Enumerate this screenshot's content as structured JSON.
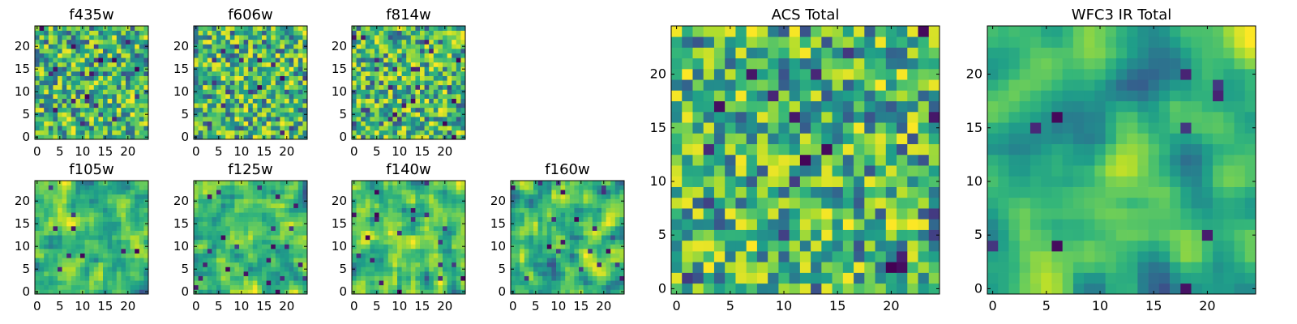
{
  "colormap": "viridis",
  "chart_data": [
    {
      "id": "f435w",
      "type": "heatmap",
      "title": "f435w",
      "grid_size": 25,
      "xlim": [
        -0.5,
        24.5
      ],
      "ylim": [
        -0.5,
        24.5
      ],
      "xticks": [
        0,
        5,
        10,
        15,
        20
      ],
      "yticks": [
        0,
        5,
        10,
        15,
        20
      ],
      "texture": "noise",
      "seed": 11
    },
    {
      "id": "f606w",
      "type": "heatmap",
      "title": "f606w",
      "grid_size": 25,
      "xlim": [
        -0.5,
        24.5
      ],
      "ylim": [
        -0.5,
        24.5
      ],
      "xticks": [
        0,
        5,
        10,
        15,
        20
      ],
      "yticks": [
        0,
        5,
        10,
        15,
        20
      ],
      "texture": "noise",
      "seed": 23
    },
    {
      "id": "f814w",
      "type": "heatmap",
      "title": "f814w",
      "grid_size": 25,
      "xlim": [
        -0.5,
        24.5
      ],
      "ylim": [
        -0.5,
        24.5
      ],
      "xticks": [
        0,
        5,
        10,
        15,
        20
      ],
      "yticks": [
        0,
        5,
        10,
        15,
        20
      ],
      "texture": "noise",
      "seed": 37
    },
    {
      "id": "f105w",
      "type": "heatmap",
      "title": "f105w",
      "grid_size": 25,
      "xlim": [
        -0.5,
        24.5
      ],
      "ylim": [
        -0.5,
        24.5
      ],
      "xticks": [
        0,
        5,
        10,
        15,
        20
      ],
      "yticks": [
        0,
        5,
        10,
        15,
        20
      ],
      "texture": "smooth",
      "seed": 41
    },
    {
      "id": "f125w",
      "type": "heatmap",
      "title": "f125w",
      "grid_size": 25,
      "xlim": [
        -0.5,
        24.5
      ],
      "ylim": [
        -0.5,
        24.5
      ],
      "xticks": [
        0,
        5,
        10,
        15,
        20
      ],
      "yticks": [
        0,
        5,
        10,
        15,
        20
      ],
      "texture": "smooth",
      "seed": 53
    },
    {
      "id": "f140w",
      "type": "heatmap",
      "title": "f140w",
      "grid_size": 25,
      "xlim": [
        -0.5,
        24.5
      ],
      "ylim": [
        -0.5,
        24.5
      ],
      "xticks": [
        0,
        5,
        10,
        15,
        20
      ],
      "yticks": [
        0,
        5,
        10,
        15,
        20
      ],
      "texture": "smooth",
      "seed": 67
    },
    {
      "id": "f160w",
      "type": "heatmap",
      "title": "f160w",
      "grid_size": 25,
      "xlim": [
        -0.5,
        24.5
      ],
      "ylim": [
        -0.5,
        24.5
      ],
      "xticks": [
        0,
        5,
        10,
        15,
        20
      ],
      "yticks": [
        0,
        5,
        10,
        15,
        20
      ],
      "texture": "smooth",
      "seed": 79
    },
    {
      "id": "acs-total",
      "type": "heatmap",
      "title": "ACS Total",
      "grid_size": 25,
      "xlim": [
        -0.5,
        24.5
      ],
      "ylim": [
        -0.5,
        24.5
      ],
      "xticks": [
        0,
        5,
        10,
        15,
        20
      ],
      "yticks": [
        0,
        5,
        10,
        15,
        20
      ],
      "texture": "noise",
      "seed": 97
    },
    {
      "id": "wfc3-ir-total",
      "type": "heatmap",
      "title": "WFC3 IR Total",
      "grid_size": 25,
      "xlim": [
        -0.5,
        24.5
      ],
      "ylim": [
        -0.5,
        24.5
      ],
      "xticks": [
        0,
        5,
        10,
        15,
        20
      ],
      "yticks": [
        0,
        5,
        10,
        15,
        20
      ],
      "texture": "structured",
      "seed": 101
    }
  ]
}
